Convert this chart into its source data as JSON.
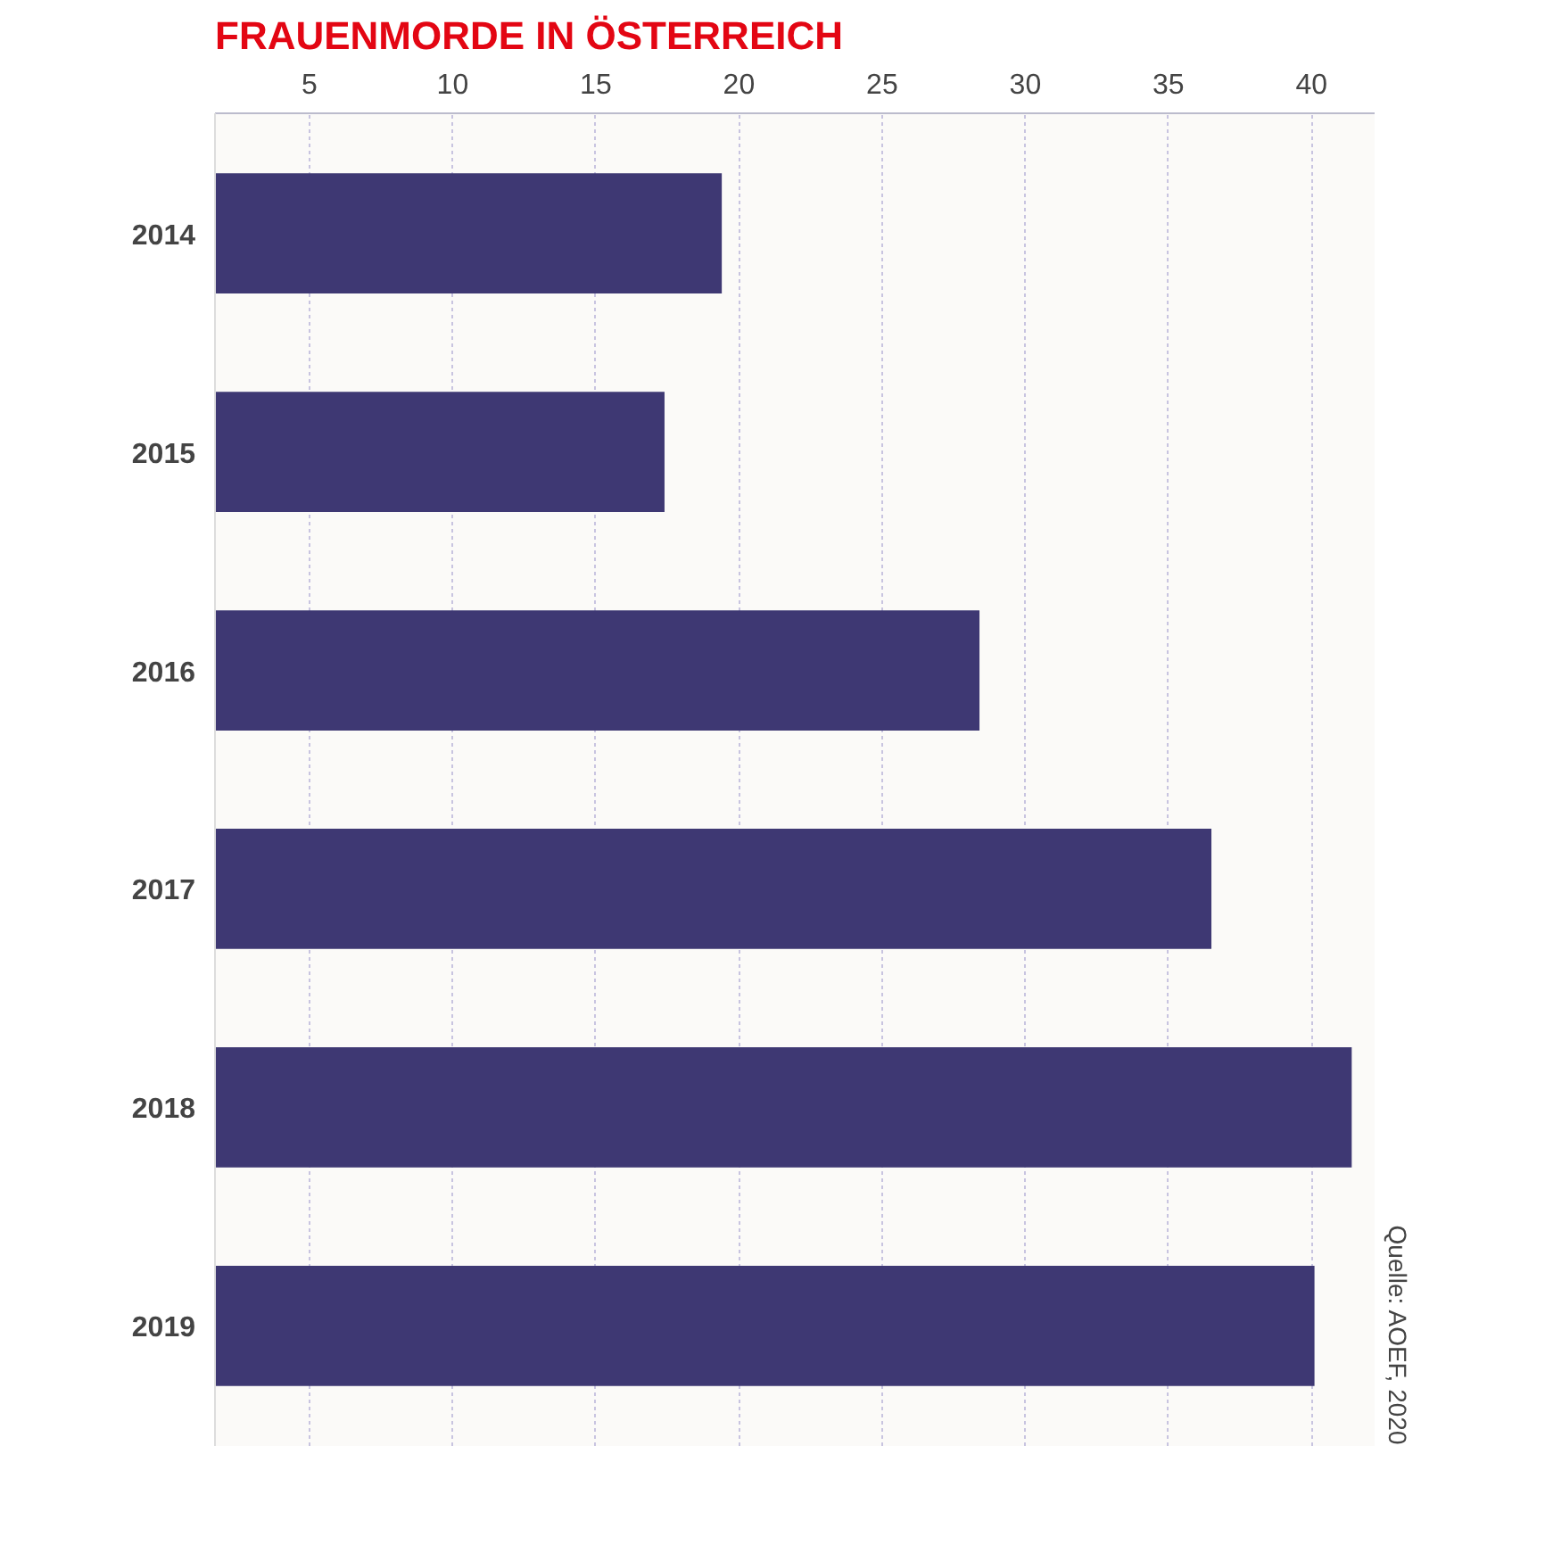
{
  "chart_data": {
    "type": "bar",
    "orientation": "horizontal",
    "title": "FRAUENMORDE IN ÖSTERREICH",
    "categories": [
      "2014",
      "2015",
      "2016",
      "2017",
      "2018",
      "2019"
    ],
    "values": [
      19.4,
      17.4,
      28.4,
      36.5,
      41.4,
      40.1
    ],
    "color": "#3e3873",
    "xlim": [
      1.7,
      42.2
    ],
    "xticks": [
      5,
      10,
      15,
      20,
      25,
      30,
      35,
      40
    ],
    "grid": "x",
    "annotations": [
      "Quelle: AOEF, 2020"
    ]
  }
}
